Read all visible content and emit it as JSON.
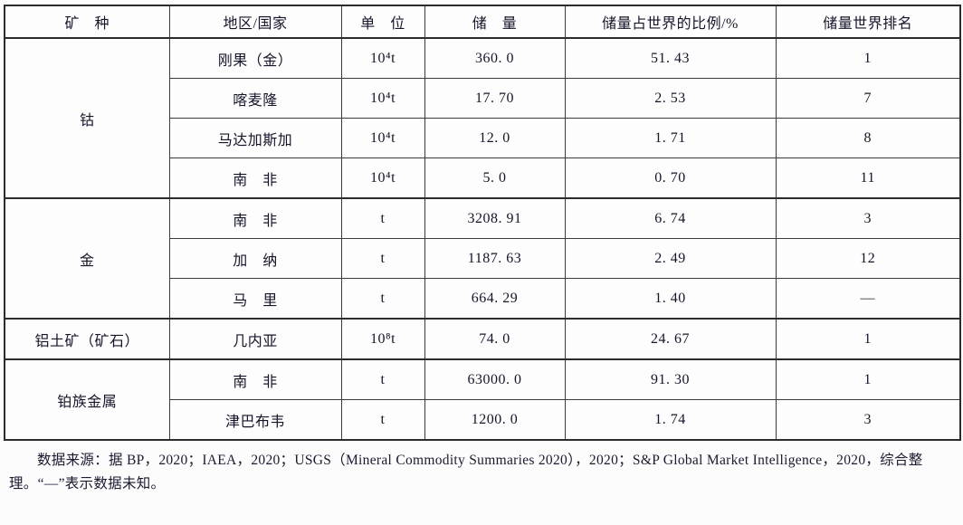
{
  "table": {
    "headers": [
      "矿　种",
      "地区/国家",
      "单　位",
      "储　量",
      "储量占世界的比例/%",
      "储量世界排名"
    ],
    "groups": [
      {
        "mineral": "钴",
        "rows": [
          [
            "刚果（金）",
            "10⁴t",
            "360. 0",
            "51. 43",
            "1"
          ],
          [
            "喀麦隆",
            "10⁴t",
            "17. 70",
            "2. 53",
            "7"
          ],
          [
            "马达加斯加",
            "10⁴t",
            "12. 0",
            "1. 71",
            "8"
          ],
          [
            "南　非",
            "10⁴t",
            "5. 0",
            "0. 70",
            "11"
          ]
        ]
      },
      {
        "mineral": "金",
        "rows": [
          [
            "南　非",
            "t",
            "3208. 91",
            "6. 74",
            "3"
          ],
          [
            "加　纳",
            "t",
            "1187. 63",
            "2. 49",
            "12"
          ],
          [
            "马　里",
            "t",
            "664. 29",
            "1. 40",
            "—"
          ]
        ]
      },
      {
        "mineral": "铝土矿（矿石）",
        "rows": [
          [
            "几内亚",
            "10⁸t",
            "74. 0",
            "24. 67",
            "1"
          ]
        ]
      },
      {
        "mineral": "铂族金属",
        "rows": [
          [
            "南　非",
            "t",
            "63000. 0",
            "91. 30",
            "1"
          ],
          [
            "津巴布韦",
            "t",
            "1200. 0",
            "1. 74",
            "3"
          ]
        ]
      }
    ]
  },
  "footnote": {
    "text": "数据来源：据 BP，2020；IAEA，2020；USGS（Mineral Commodity Summaries 2020），2020；S&P Global Market Intelligence，2020，综合整理。“—”表示数据未知。"
  }
}
